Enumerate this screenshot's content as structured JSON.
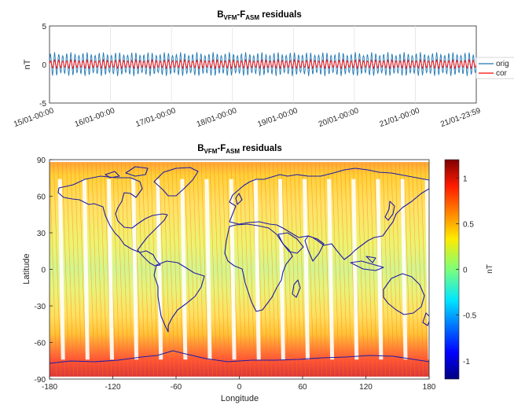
{
  "charts": {
    "top": {
      "title_main": "B",
      "title_sub1": "VFM",
      "title_dash": "-F",
      "title_sub2": "ASM",
      "title_rest": " residuals",
      "ylabel": "nT",
      "legend": [
        "orig",
        "cor"
      ]
    },
    "bottom": {
      "title_main": "B",
      "title_sub1": "VFM",
      "title_dash": "-F",
      "title_sub2": "ASM",
      "title_rest": " residuals",
      "xlabel": "Longitude",
      "ylabel": "Latitude",
      "colorbar_label": "nT"
    }
  },
  "chart_data": [
    {
      "type": "line",
      "title": "BVFM-FASM residuals",
      "ylabel": "nT",
      "ylim": [
        -5,
        5
      ],
      "yticks": [
        -5,
        0,
        5
      ],
      "xticks": [
        "15/01-00:00",
        "16/01-00:00",
        "17/01-00:00",
        "18/01-00:00",
        "19/01-00:00",
        "20/01-00:00",
        "21/01-00:00",
        "21/01-23:59"
      ],
      "grid": true,
      "legend_position": "right",
      "series": [
        {
          "name": "orig",
          "color": "#1f77b4",
          "approx_range": [
            -1.5,
            1.6
          ]
        },
        {
          "name": "cor",
          "color": "#ff0000",
          "approx_range": [
            -0.5,
            0.6
          ]
        }
      ]
    },
    {
      "type": "heatmap",
      "title": "BVFM-FASM residuals",
      "xlabel": "Longitude",
      "ylabel": "Latitude",
      "xlim": [
        -180,
        180
      ],
      "ylim": [
        -90,
        90
      ],
      "xticks": [
        -180,
        -120,
        -60,
        0,
        60,
        120,
        180
      ],
      "yticks": [
        -90,
        -60,
        -30,
        0,
        30,
        60,
        90
      ],
      "colorbar": {
        "label": "nT",
        "range": [
          -1.2,
          1.2
        ],
        "ticks": [
          -1,
          -0.5,
          0,
          0.5,
          1
        ],
        "colormap": "jet"
      },
      "overlay": "coastlines",
      "coastline_color": "#1c1ca8"
    }
  ]
}
